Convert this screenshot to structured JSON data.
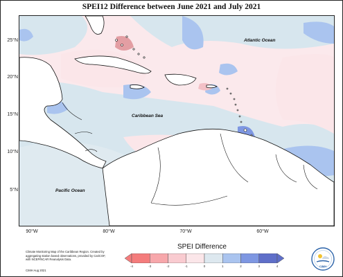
{
  "title": "SPEI12 Difference between June 2021 and July 2021",
  "lat_ticks": [
    "25°N",
    "20°N",
    "15°N",
    "10°N",
    "5°N"
  ],
  "lon_ticks": [
    "90°W",
    "80°W",
    "70°W",
    "60°W"
  ],
  "ocean_labels": {
    "atlantic": "Atlantic Ocean",
    "caribbean": "Caribbean Sea",
    "pacific": "Pacific Ocean"
  },
  "legend": {
    "title": "SPEI Difference",
    "ticks": [
      "-4",
      "-3",
      "-2",
      "-1",
      "0",
      "1",
      "2",
      "3",
      "4"
    ],
    "colors": [
      "#f47c7c",
      "#f7a7ab",
      "#f9cbd0",
      "#fbe6e9",
      "#dde8ef",
      "#aac4ef",
      "#7e97e2",
      "#5f6fc9"
    ]
  },
  "footnote": "Climate Monitoring Map of the Caribbean Region. Created by aggregating station based observations, provided by CariCOF, with NCEP/NCAR Reanalysis Data.",
  "footdate": "CIMH Aug 2021",
  "logo_text": "CIMH"
}
